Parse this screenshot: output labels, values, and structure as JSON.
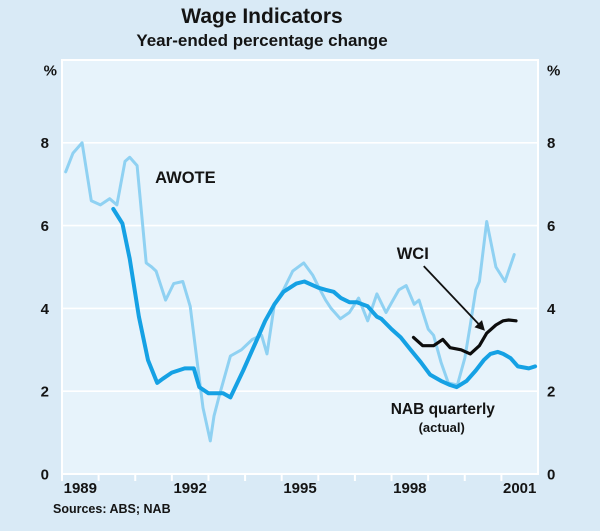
{
  "sources": {
    "text": "Sources: ABS; NAB"
  },
  "chart_data": {
    "type": "line",
    "title": "Wage Indicators",
    "subtitle": "Year-ended percentage change",
    "ylabel": "%",
    "colors": {
      "outer_background": "#d9eaf6",
      "plot_background": "#e7f3fb",
      "grid": "#ffffff"
    },
    "x_axis": {
      "domain": [
        1989,
        2002
      ],
      "tick_years": [
        1989,
        1990,
        1991,
        1992,
        1993,
        1994,
        1995,
        1996,
        1997,
        1998,
        1999,
        2000,
        2001
      ],
      "label_years": [
        1989,
        1992,
        1995,
        1998,
        2001
      ]
    },
    "y_axis": {
      "domain": [
        0,
        10
      ],
      "ticks": [
        0,
        2,
        4,
        6,
        8
      ],
      "gridlines": [
        2,
        4,
        6,
        8
      ],
      "sides": "both",
      "unit": "%"
    },
    "series": [
      {
        "id": "awote",
        "name": "AWOTE",
        "color": "#8fd1f2",
        "width": 3,
        "points": [
          [
            1989.1,
            7.3
          ],
          [
            1989.3,
            7.75
          ],
          [
            1989.55,
            8.0
          ],
          [
            1989.8,
            6.6
          ],
          [
            1990.05,
            6.5
          ],
          [
            1990.3,
            6.65
          ],
          [
            1990.5,
            6.5
          ],
          [
            1990.72,
            7.55
          ],
          [
            1990.85,
            7.65
          ],
          [
            1991.05,
            7.45
          ],
          [
            1991.3,
            5.1
          ],
          [
            1991.45,
            5.0
          ],
          [
            1991.57,
            4.9
          ],
          [
            1991.83,
            4.2
          ],
          [
            1992.05,
            4.6
          ],
          [
            1992.3,
            4.65
          ],
          [
            1992.5,
            4.05
          ],
          [
            1992.68,
            2.8
          ],
          [
            1992.85,
            1.6
          ],
          [
            1993.05,
            0.8
          ],
          [
            1993.15,
            1.4
          ],
          [
            1993.3,
            1.9
          ],
          [
            1993.6,
            2.85
          ],
          [
            1993.9,
            3.0
          ],
          [
            1994.2,
            3.25
          ],
          [
            1994.45,
            3.35
          ],
          [
            1994.6,
            2.9
          ],
          [
            1994.8,
            4.1
          ],
          [
            1995.05,
            4.45
          ],
          [
            1995.3,
            4.9
          ],
          [
            1995.6,
            5.1
          ],
          [
            1995.85,
            4.8
          ],
          [
            1996.02,
            4.5
          ],
          [
            1996.2,
            4.2
          ],
          [
            1996.35,
            4.0
          ],
          [
            1996.6,
            3.75
          ],
          [
            1996.85,
            3.9
          ],
          [
            1997.1,
            4.25
          ],
          [
            1997.35,
            3.7
          ],
          [
            1997.6,
            4.35
          ],
          [
            1997.85,
            3.9
          ],
          [
            1998.2,
            4.45
          ],
          [
            1998.4,
            4.55
          ],
          [
            1998.62,
            4.1
          ],
          [
            1998.75,
            4.2
          ],
          [
            1999.0,
            3.5
          ],
          [
            1999.15,
            3.35
          ],
          [
            1999.35,
            2.7
          ],
          [
            1999.55,
            2.2
          ],
          [
            1999.8,
            2.15
          ],
          [
            2000.0,
            2.8
          ],
          [
            2000.15,
            3.6
          ],
          [
            2000.3,
            4.45
          ],
          [
            2000.4,
            4.65
          ],
          [
            2000.6,
            6.1
          ],
          [
            2000.85,
            5.0
          ],
          [
            2001.1,
            4.65
          ],
          [
            2001.35,
            5.3
          ]
        ]
      },
      {
        "id": "nab",
        "name": "NAB quarterly (actual)",
        "color": "#15a1e4",
        "width": 4,
        "points": [
          [
            1990.4,
            6.4
          ],
          [
            1990.65,
            6.05
          ],
          [
            1990.85,
            5.2
          ],
          [
            1991.1,
            3.8
          ],
          [
            1991.35,
            2.75
          ],
          [
            1991.6,
            2.2
          ],
          [
            1991.75,
            2.3
          ],
          [
            1992.0,
            2.45
          ],
          [
            1992.35,
            2.55
          ],
          [
            1992.6,
            2.55
          ],
          [
            1992.75,
            2.1
          ],
          [
            1993.0,
            1.95
          ],
          [
            1993.2,
            1.95
          ],
          [
            1993.4,
            1.95
          ],
          [
            1993.6,
            1.85
          ],
          [
            1993.95,
            2.5
          ],
          [
            1994.3,
            3.2
          ],
          [
            1994.55,
            3.7
          ],
          [
            1994.8,
            4.1
          ],
          [
            1995.05,
            4.4
          ],
          [
            1995.4,
            4.6
          ],
          [
            1995.62,
            4.65
          ],
          [
            1996.0,
            4.5
          ],
          [
            1996.2,
            4.45
          ],
          [
            1996.42,
            4.4
          ],
          [
            1996.62,
            4.25
          ],
          [
            1996.85,
            4.15
          ],
          [
            1997.05,
            4.15
          ],
          [
            1997.35,
            4.05
          ],
          [
            1997.6,
            3.8
          ],
          [
            1997.72,
            3.75
          ],
          [
            1998.0,
            3.5
          ],
          [
            1998.25,
            3.3
          ],
          [
            1998.52,
            3.0
          ],
          [
            1998.8,
            2.7
          ],
          [
            1999.05,
            2.4
          ],
          [
            1999.35,
            2.25
          ],
          [
            1999.6,
            2.15
          ],
          [
            1999.78,
            2.1
          ],
          [
            2000.05,
            2.25
          ],
          [
            2000.3,
            2.5
          ],
          [
            2000.52,
            2.75
          ],
          [
            2000.7,
            2.9
          ],
          [
            2000.9,
            2.95
          ],
          [
            2001.05,
            2.9
          ],
          [
            2001.25,
            2.8
          ],
          [
            2001.45,
            2.6
          ],
          [
            2001.75,
            2.55
          ],
          [
            2001.92,
            2.6
          ]
        ]
      },
      {
        "id": "wci",
        "name": "WCI",
        "color": "#0d0d0d",
        "width": 3.2,
        "points": [
          [
            1998.6,
            3.3
          ],
          [
            1998.85,
            3.1
          ],
          [
            1999.15,
            3.1
          ],
          [
            1999.4,
            3.25
          ],
          [
            1999.6,
            3.05
          ],
          [
            1999.9,
            3.0
          ],
          [
            2000.15,
            2.9
          ],
          [
            2000.4,
            3.1
          ],
          [
            2000.6,
            3.4
          ],
          [
            2000.85,
            3.6
          ],
          [
            2001.05,
            3.7
          ],
          [
            2001.2,
            3.72
          ],
          [
            2001.4,
            3.7
          ]
        ]
      }
    ],
    "annotations": [
      {
        "id": "awote-label",
        "text": "AWOTE",
        "x": 1992.37,
        "y": 7.17,
        "size": 16.5
      },
      {
        "id": "wci-label",
        "text": "WCI",
        "x": 1998.58,
        "y": 5.34,
        "size": 16.5
      },
      {
        "id": "nab-label",
        "text": "NAB quarterly",
        "x": 1999.4,
        "y": 1.59,
        "size": 15.5
      },
      {
        "id": "nab-sublabel",
        "text": "(actual)",
        "x": 1999.37,
        "y": 1.13,
        "size": 13
      }
    ],
    "arrow": {
      "from": [
        1998.88,
        5.02
      ],
      "to": [
        2000.55,
        3.46
      ]
    },
    "legend": "none",
    "grid": "horizontal-white"
  }
}
